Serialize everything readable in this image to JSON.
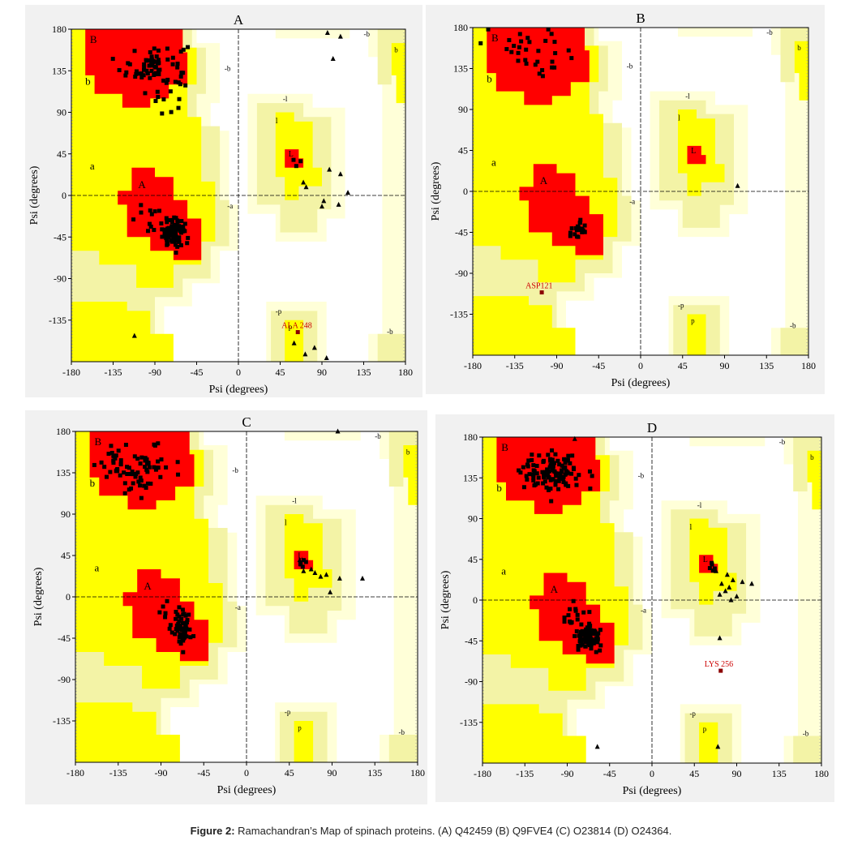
{
  "caption": {
    "label": "Figure 2:",
    "text": " Ramachandran’s Map of spinach proteins. (A) Q42459 (B) Q9FVE4 (C) O23814 (D) O24364."
  },
  "colors": {
    "core": "#ff0000",
    "allowed": "#ffff00",
    "generous": "#f3f3a6",
    "outer": "#ffffd8",
    "disallowed": "#ffffff",
    "point": "#000000",
    "label": "#cc0000"
  },
  "region_labels": [
    "B",
    "b",
    "A",
    "a",
    "L",
    "l",
    "-b",
    "-a",
    "-l",
    "-p",
    "p",
    "~b"
  ],
  "chart_data": [
    {
      "type": "scatter",
      "title": "A",
      "xlabel": "Psi (degrees)",
      "ylabel": "Psi (degrees)",
      "xlim": [
        -180,
        180
      ],
      "ylim": [
        -180,
        180
      ],
      "xticks": [
        "-180",
        "-135",
        "-90",
        "-45",
        "0",
        "45",
        "90",
        "135",
        "180"
      ],
      "yticks": [
        "180",
        "135",
        "90",
        "45",
        "0",
        "-45",
        "-90",
        "-135"
      ],
      "outlier": {
        "label": "ALA 248",
        "phi": 64,
        "psi": -148
      },
      "triangles": [
        [
          96,
          176
        ],
        [
          110,
          172
        ],
        [
          102,
          148
        ],
        [
          95,
          -176
        ],
        [
          72,
          -172
        ],
        [
          82,
          -165
        ],
        [
          98,
          28
        ],
        [
          110,
          23
        ],
        [
          118,
          3
        ],
        [
          108,
          -10
        ],
        [
          90,
          -12
        ],
        [
          70,
          14
        ],
        [
          73,
          9
        ],
        [
          92,
          -6
        ],
        [
          60,
          -160
        ],
        [
          -112,
          -152
        ]
      ]
    },
    {
      "type": "scatter",
      "title": "B",
      "xlabel": "Psi (degrees)",
      "ylabel": "Psi (degrees)",
      "xlim": [
        -180,
        180
      ],
      "ylim": [
        -180,
        180
      ],
      "xticks": [
        "-180",
        "-135",
        "-90",
        "-45",
        "0",
        "45",
        "90",
        "135",
        "180"
      ],
      "yticks": [
        "180",
        "135",
        "90",
        "45",
        "0",
        "-45",
        "-90",
        "-135"
      ],
      "outlier": {
        "label": "ASP121",
        "phi": -106,
        "psi": -111
      },
      "triangles": [
        [
          104,
          6
        ]
      ]
    },
    {
      "type": "scatter",
      "title": "C",
      "xlabel": "Psi (degrees)",
      "ylabel": "Psi (degrees)",
      "xlim": [
        -180,
        180
      ],
      "ylim": [
        -180,
        180
      ],
      "xticks": [
        "-180",
        "-135",
        "-90",
        "-45",
        "0",
        "45",
        "90",
        "135",
        "180"
      ],
      "yticks": [
        "180",
        "135",
        "90",
        "45",
        "0",
        "-45",
        "-90",
        "-135"
      ],
      "outlier": null,
      "triangles": [
        [
          96,
          180
        ],
        [
          68,
          30
        ],
        [
          72,
          26
        ],
        [
          78,
          22
        ],
        [
          84,
          24
        ],
        [
          98,
          20
        ],
        [
          122,
          20
        ],
        [
          88,
          5
        ],
        [
          60,
          28
        ],
        [
          56,
          40
        ]
      ]
    },
    {
      "type": "scatter",
      "title": "D",
      "xlabel": "Psi (degrees)",
      "ylabel": "Psi (degrees)",
      "xlim": [
        -180,
        180
      ],
      "ylim": [
        -180,
        180
      ],
      "xticks": [
        "-180",
        "-135",
        "-90",
        "-45",
        "0",
        "45",
        "90",
        "135",
        "180"
      ],
      "yticks": [
        "180",
        "135",
        "90",
        "45",
        "0",
        "-45",
        "-90",
        "-135"
      ],
      "outlier": {
        "label": "LYS 256",
        "phi": 73,
        "psi": -78
      },
      "triangles": [
        [
          72,
          -42
        ],
        [
          70,
          -162
        ],
        [
          68,
          32
        ],
        [
          80,
          28
        ],
        [
          86,
          22
        ],
        [
          96,
          20
        ],
        [
          106,
          18
        ],
        [
          74,
          18
        ],
        [
          82,
          14
        ],
        [
          78,
          10
        ],
        [
          72,
          6
        ],
        [
          90,
          4
        ],
        [
          84,
          0
        ],
        [
          -82,
          178
        ],
        [
          -58,
          -162
        ]
      ]
    }
  ]
}
